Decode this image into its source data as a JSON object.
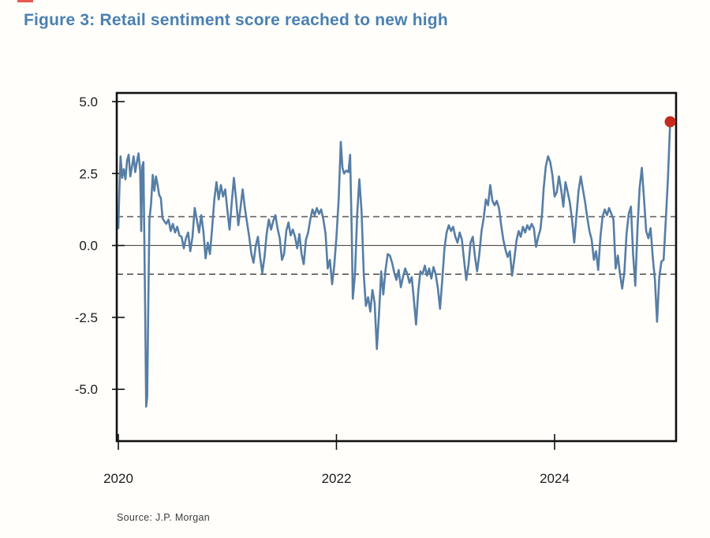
{
  "figure": {
    "title": "Figure 3: Retail sentiment score reached to new high",
    "title_color": "#4a80b2",
    "source": "Source: J.P. Morgan",
    "stray_mark_color": "#e03c31"
  },
  "chart_data": {
    "type": "line",
    "title": "Figure 3: Retail sentiment score reached to new high",
    "xlabel": "",
    "ylabel": "",
    "grid": "off",
    "legend": "none",
    "xlim": [
      2019.9855,
      2025.114
    ],
    "ylim": [
      -6.8,
      5.3
    ],
    "x_ticks": [
      {
        "value": 2020,
        "label": "2020"
      },
      {
        "value": 2022,
        "label": "2022"
      },
      {
        "value": 2024,
        "label": "2024"
      }
    ],
    "y_ticks": [
      {
        "value": 5.0,
        "label": "5.0"
      },
      {
        "value": 2.5,
        "label": "2.5"
      },
      {
        "value": 0.0,
        "label": "0.0"
      },
      {
        "value": -2.5,
        "label": "-2.5"
      },
      {
        "value": -5.0,
        "label": "-5.0"
      }
    ],
    "reference_lines": [
      {
        "value": 1.0,
        "style": "dashed"
      },
      {
        "value": 0.0,
        "style": "solid"
      },
      {
        "value": -1.0,
        "style": "dashed"
      }
    ],
    "line_color": "#567ea6",
    "axis_color": "#111111",
    "marker": {
      "x": 2025.06,
      "y": 4.3,
      "color": "#c62a1c",
      "radius": 7
    },
    "series": [
      {
        "name": "Retail sentiment score",
        "points": [
          [
            2020.0,
            0.6
          ],
          [
            2020.01,
            2.0
          ],
          [
            2020.02,
            3.1
          ],
          [
            2020.035,
            2.35
          ],
          [
            2020.05,
            2.65
          ],
          [
            2020.065,
            2.3
          ],
          [
            2020.08,
            2.95
          ],
          [
            2020.095,
            3.15
          ],
          [
            2020.11,
            2.4
          ],
          [
            2020.125,
            2.75
          ],
          [
            2020.14,
            3.1
          ],
          [
            2020.155,
            2.55
          ],
          [
            2020.17,
            2.9
          ],
          [
            2020.185,
            3.2
          ],
          [
            2020.2,
            2.6
          ],
          [
            2020.21,
            0.5
          ],
          [
            2020.22,
            2.75
          ],
          [
            2020.23,
            2.9
          ],
          [
            2020.245,
            -2.0
          ],
          [
            2020.255,
            -5.6
          ],
          [
            2020.265,
            -5.25
          ],
          [
            2020.275,
            -2.0
          ],
          [
            2020.285,
            0.9
          ],
          [
            2020.3,
            1.45
          ],
          [
            2020.315,
            2.45
          ],
          [
            2020.33,
            1.9
          ],
          [
            2020.345,
            2.4
          ],
          [
            2020.36,
            2.1
          ],
          [
            2020.375,
            1.75
          ],
          [
            2020.39,
            1.65
          ],
          [
            2020.405,
            0.95
          ],
          [
            2020.42,
            0.85
          ],
          [
            2020.44,
            0.75
          ],
          [
            2020.46,
            0.9
          ],
          [
            2020.48,
            0.5
          ],
          [
            2020.5,
            0.75
          ],
          [
            2020.52,
            0.45
          ],
          [
            2020.54,
            0.65
          ],
          [
            2020.56,
            0.35
          ],
          [
            2020.58,
            0.3
          ],
          [
            2020.6,
            -0.1
          ],
          [
            2020.62,
            0.25
          ],
          [
            2020.64,
            0.45
          ],
          [
            2020.66,
            -0.2
          ],
          [
            2020.68,
            0.3
          ],
          [
            2020.7,
            1.3
          ],
          [
            2020.72,
            0.9
          ],
          [
            2020.74,
            0.45
          ],
          [
            2020.76,
            1.05
          ],
          [
            2020.78,
            0.5
          ],
          [
            2020.8,
            -0.45
          ],
          [
            2020.82,
            0.1
          ],
          [
            2020.84,
            -0.3
          ],
          [
            2020.86,
            0.6
          ],
          [
            2020.88,
            1.6
          ],
          [
            2020.9,
            2.2
          ],
          [
            2020.92,
            1.6
          ],
          [
            2020.94,
            2.1
          ],
          [
            2020.96,
            1.7
          ],
          [
            2020.98,
            1.95
          ],
          [
            2021.0,
            1.2
          ],
          [
            2021.02,
            0.55
          ],
          [
            2021.04,
            1.5
          ],
          [
            2021.06,
            2.35
          ],
          [
            2021.08,
            1.6
          ],
          [
            2021.1,
            0.7
          ],
          [
            2021.12,
            1.3
          ],
          [
            2021.14,
            1.95
          ],
          [
            2021.16,
            1.3
          ],
          [
            2021.18,
            0.8
          ],
          [
            2021.2,
            0.3
          ],
          [
            2021.22,
            -0.3
          ],
          [
            2021.24,
            -0.6
          ],
          [
            2021.26,
            0.0
          ],
          [
            2021.28,
            0.3
          ],
          [
            2021.3,
            -0.4
          ],
          [
            2021.32,
            -0.95
          ],
          [
            2021.34,
            -0.4
          ],
          [
            2021.36,
            0.4
          ],
          [
            2021.38,
            0.9
          ],
          [
            2021.4,
            0.55
          ],
          [
            2021.42,
            0.85
          ],
          [
            2021.44,
            1.05
          ],
          [
            2021.46,
            0.6
          ],
          [
            2021.48,
            0.25
          ],
          [
            2021.5,
            -0.5
          ],
          [
            2021.52,
            -0.3
          ],
          [
            2021.54,
            0.5
          ],
          [
            2021.56,
            0.8
          ],
          [
            2021.58,
            0.35
          ],
          [
            2021.6,
            0.55
          ],
          [
            2021.62,
            0.3
          ],
          [
            2021.64,
            -0.1
          ],
          [
            2021.66,
            0.4
          ],
          [
            2021.68,
            -0.3
          ],
          [
            2021.7,
            -0.65
          ],
          [
            2021.72,
            0.2
          ],
          [
            2021.74,
            0.45
          ],
          [
            2021.76,
            0.9
          ],
          [
            2021.78,
            1.25
          ],
          [
            2021.8,
            1.05
          ],
          [
            2021.82,
            1.3
          ],
          [
            2021.84,
            1.1
          ],
          [
            2021.86,
            1.25
          ],
          [
            2021.88,
            0.9
          ],
          [
            2021.9,
            0.4
          ],
          [
            2021.92,
            -0.8
          ],
          [
            2021.94,
            -0.5
          ],
          [
            2021.96,
            -1.35
          ],
          [
            2021.98,
            -0.7
          ],
          [
            2022.0,
            0.3
          ],
          [
            2022.02,
            1.6
          ],
          [
            2022.04,
            3.6
          ],
          [
            2022.055,
            2.7
          ],
          [
            2022.07,
            2.5
          ],
          [
            2022.09,
            2.6
          ],
          [
            2022.11,
            2.55
          ],
          [
            2022.125,
            3.15
          ],
          [
            2022.14,
            0.4
          ],
          [
            2022.15,
            -1.85
          ],
          [
            2022.17,
            -1.0
          ],
          [
            2022.19,
            1.1
          ],
          [
            2022.21,
            2.3
          ],
          [
            2022.23,
            1.2
          ],
          [
            2022.25,
            -1.0
          ],
          [
            2022.27,
            -2.1
          ],
          [
            2022.29,
            -1.8
          ],
          [
            2022.31,
            -2.3
          ],
          [
            2022.33,
            -1.55
          ],
          [
            2022.35,
            -2.0
          ],
          [
            2022.37,
            -3.6
          ],
          [
            2022.39,
            -2.4
          ],
          [
            2022.41,
            -0.9
          ],
          [
            2022.43,
            -1.7
          ],
          [
            2022.45,
            -0.85
          ],
          [
            2022.47,
            -0.3
          ],
          [
            2022.49,
            -0.35
          ],
          [
            2022.51,
            -0.6
          ],
          [
            2022.53,
            -0.95
          ],
          [
            2022.55,
            -1.2
          ],
          [
            2022.57,
            -0.85
          ],
          [
            2022.59,
            -1.45
          ],
          [
            2022.61,
            -1.1
          ],
          [
            2022.63,
            -0.8
          ],
          [
            2022.65,
            -1.0
          ],
          [
            2022.67,
            -1.3
          ],
          [
            2022.69,
            -1.1
          ],
          [
            2022.71,
            -1.9
          ],
          [
            2022.73,
            -2.75
          ],
          [
            2022.75,
            -1.6
          ],
          [
            2022.77,
            -0.9
          ],
          [
            2022.79,
            -1.0
          ],
          [
            2022.81,
            -0.7
          ],
          [
            2022.83,
            -1.05
          ],
          [
            2022.85,
            -0.8
          ],
          [
            2022.87,
            -1.15
          ],
          [
            2022.89,
            -0.75
          ],
          [
            2022.91,
            -1.0
          ],
          [
            2022.93,
            -1.5
          ],
          [
            2022.95,
            -2.2
          ],
          [
            2022.97,
            -1.2
          ],
          [
            2022.99,
            -0.1
          ],
          [
            2023.01,
            0.45
          ],
          [
            2023.03,
            0.7
          ],
          [
            2023.05,
            0.5
          ],
          [
            2023.07,
            0.65
          ],
          [
            2023.09,
            0.3
          ],
          [
            2023.11,
            0.1
          ],
          [
            2023.13,
            0.45
          ],
          [
            2023.15,
            0.2
          ],
          [
            2023.17,
            -0.5
          ],
          [
            2023.19,
            -1.2
          ],
          [
            2023.21,
            -0.7
          ],
          [
            2023.23,
            0.1
          ],
          [
            2023.25,
            0.3
          ],
          [
            2023.27,
            -0.4
          ],
          [
            2023.29,
            -0.9
          ],
          [
            2023.31,
            -0.3
          ],
          [
            2023.33,
            0.5
          ],
          [
            2023.35,
            0.95
          ],
          [
            2023.37,
            1.6
          ],
          [
            2023.39,
            1.4
          ],
          [
            2023.41,
            2.1
          ],
          [
            2023.43,
            1.55
          ],
          [
            2023.45,
            1.4
          ],
          [
            2023.47,
            1.55
          ],
          [
            2023.49,
            1.3
          ],
          [
            2023.51,
            0.7
          ],
          [
            2023.53,
            0.2
          ],
          [
            2023.55,
            -0.15
          ],
          [
            2023.57,
            -0.4
          ],
          [
            2023.59,
            -0.2
          ],
          [
            2023.61,
            -1.05
          ],
          [
            2023.63,
            -0.5
          ],
          [
            2023.65,
            0.15
          ],
          [
            2023.67,
            0.5
          ],
          [
            2023.69,
            0.3
          ],
          [
            2023.71,
            0.65
          ],
          [
            2023.73,
            0.45
          ],
          [
            2023.75,
            0.7
          ],
          [
            2023.77,
            0.55
          ],
          [
            2023.79,
            0.75
          ],
          [
            2023.81,
            0.6
          ],
          [
            2023.83,
            -0.05
          ],
          [
            2023.85,
            0.3
          ],
          [
            2023.87,
            0.55
          ],
          [
            2023.885,
            1.1
          ],
          [
            2023.9,
            2.0
          ],
          [
            2023.92,
            2.75
          ],
          [
            2023.94,
            3.1
          ],
          [
            2023.96,
            2.9
          ],
          [
            2023.98,
            2.45
          ],
          [
            2024.0,
            1.7
          ],
          [
            2024.02,
            1.85
          ],
          [
            2024.04,
            2.4
          ],
          [
            2024.06,
            1.95
          ],
          [
            2024.08,
            1.35
          ],
          [
            2024.1,
            2.2
          ],
          [
            2024.12,
            1.85
          ],
          [
            2024.14,
            1.5
          ],
          [
            2024.16,
            0.9
          ],
          [
            2024.18,
            0.1
          ],
          [
            2024.2,
            1.0
          ],
          [
            2024.22,
            1.9
          ],
          [
            2024.24,
            2.4
          ],
          [
            2024.26,
            1.95
          ],
          [
            2024.28,
            1.5
          ],
          [
            2024.3,
            0.95
          ],
          [
            2024.32,
            0.5
          ],
          [
            2024.34,
            0.2
          ],
          [
            2024.36,
            -0.5
          ],
          [
            2024.38,
            -0.2
          ],
          [
            2024.4,
            -0.85
          ],
          [
            2024.42,
            0.3
          ],
          [
            2024.44,
            1.0
          ],
          [
            2024.46,
            1.25
          ],
          [
            2024.48,
            1.05
          ],
          [
            2024.5,
            1.3
          ],
          [
            2024.52,
            1.1
          ],
          [
            2024.54,
            0.9
          ],
          [
            2024.56,
            -0.8
          ],
          [
            2024.58,
            -0.35
          ],
          [
            2024.6,
            -1.0
          ],
          [
            2024.62,
            -1.5
          ],
          [
            2024.64,
            -0.9
          ],
          [
            2024.66,
            0.4
          ],
          [
            2024.68,
            1.1
          ],
          [
            2024.7,
            1.35
          ],
          [
            2024.72,
            -0.3
          ],
          [
            2024.74,
            -1.4
          ],
          [
            2024.76,
            0.6
          ],
          [
            2024.78,
            2.0
          ],
          [
            2024.8,
            2.7
          ],
          [
            2024.82,
            1.6
          ],
          [
            2024.84,
            0.5
          ],
          [
            2024.86,
            0.25
          ],
          [
            2024.88,
            0.6
          ],
          [
            2024.9,
            -0.4
          ],
          [
            2024.92,
            -1.2
          ],
          [
            2024.94,
            -2.65
          ],
          [
            2024.96,
            -1.1
          ],
          [
            2024.98,
            -0.55
          ],
          [
            2025.0,
            -0.5
          ],
          [
            2025.02,
            0.9
          ],
          [
            2025.04,
            2.4
          ],
          [
            2025.06,
            4.3
          ]
        ]
      }
    ]
  }
}
